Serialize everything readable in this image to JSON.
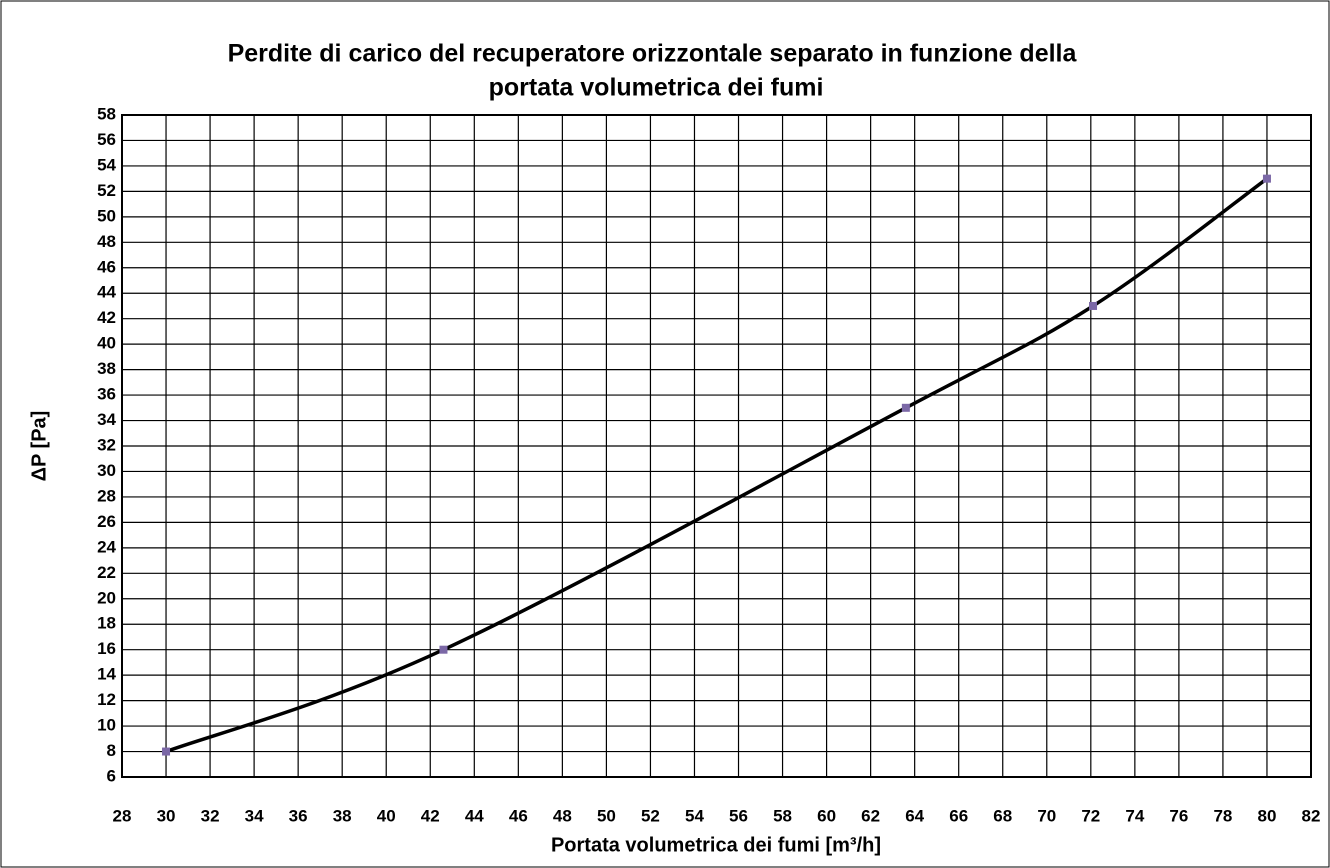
{
  "chart_data": {
    "type": "line",
    "title": [
      "Perdite di carico del recuperatore orizzontale separato in funzione della",
      "portata volumetrica dei  fumi"
    ],
    "xlabel": "Portata volumetrica dei fumi  [m³/h]",
    "ylabel": "ΔP  [Pa]",
    "x": [
      30,
      42.6,
      63.6,
      72.1,
      80
    ],
    "series": [
      {
        "name": "ΔP",
        "color": "#000000",
        "marker_color": "#7b68a6",
        "values": [
          8,
          16,
          35,
          43,
          53
        ]
      }
    ],
    "xlim": [
      28,
      82
    ],
    "xticks": [
      28,
      30,
      32,
      34,
      36,
      38,
      40,
      42,
      44,
      46,
      48,
      50,
      52,
      54,
      56,
      58,
      60,
      62,
      64,
      66,
      68,
      70,
      72,
      74,
      76,
      78,
      80,
      82
    ],
    "ylim": [
      6,
      58
    ],
    "yticks": [
      6,
      8,
      10,
      12,
      14,
      16,
      18,
      20,
      22,
      24,
      26,
      28,
      30,
      32,
      34,
      36,
      38,
      40,
      42,
      44,
      46,
      48,
      50,
      52,
      54,
      56,
      58
    ],
    "grid": true
  }
}
